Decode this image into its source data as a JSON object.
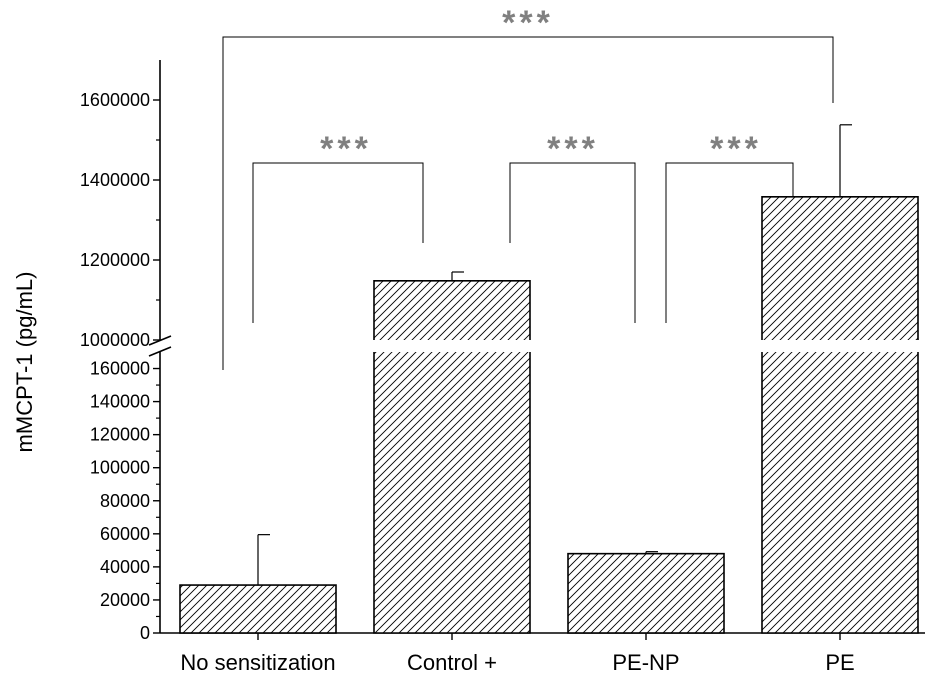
{
  "chart_data": {
    "type": "bar",
    "title": "",
    "xlabel": "",
    "ylabel": "mMCPT-1 (pg/mL)",
    "categories": [
      "No sensitization",
      "Control +",
      "PE-NP",
      "PE"
    ],
    "series": [
      {
        "values": [
          29000,
          1148000,
          48000,
          1358000
        ],
        "errors": [
          30500,
          22000,
          1200,
          180000
        ]
      }
    ],
    "axis_break": {
      "lower": {
        "range": [
          0,
          170000
        ],
        "ticks": [
          "0",
          "20000",
          "40000",
          "60000",
          "80000",
          "100000",
          "120000",
          "140000",
          "160000"
        ]
      },
      "upper": {
        "range": [
          1000000,
          1700000
        ],
        "ticks": [
          "1000000",
          "1200000",
          "1400000",
          "1600000"
        ]
      }
    },
    "fill_pattern": "diagonal-hatch",
    "grid": false,
    "legend": "none",
    "significance": [
      {
        "from": "No sensitization",
        "to": "PE",
        "label": "***"
      },
      {
        "from": "No sensitization",
        "to": "Control +",
        "label": "***"
      },
      {
        "from": "Control +",
        "to": "PE-NP",
        "label": "***"
      },
      {
        "from": "PE-NP",
        "to": "PE",
        "label": "***"
      }
    ],
    "colors": {
      "bar_fill": "#ffffff",
      "hatch": "#000000",
      "significance": "#808080",
      "axis": "#000000"
    }
  }
}
